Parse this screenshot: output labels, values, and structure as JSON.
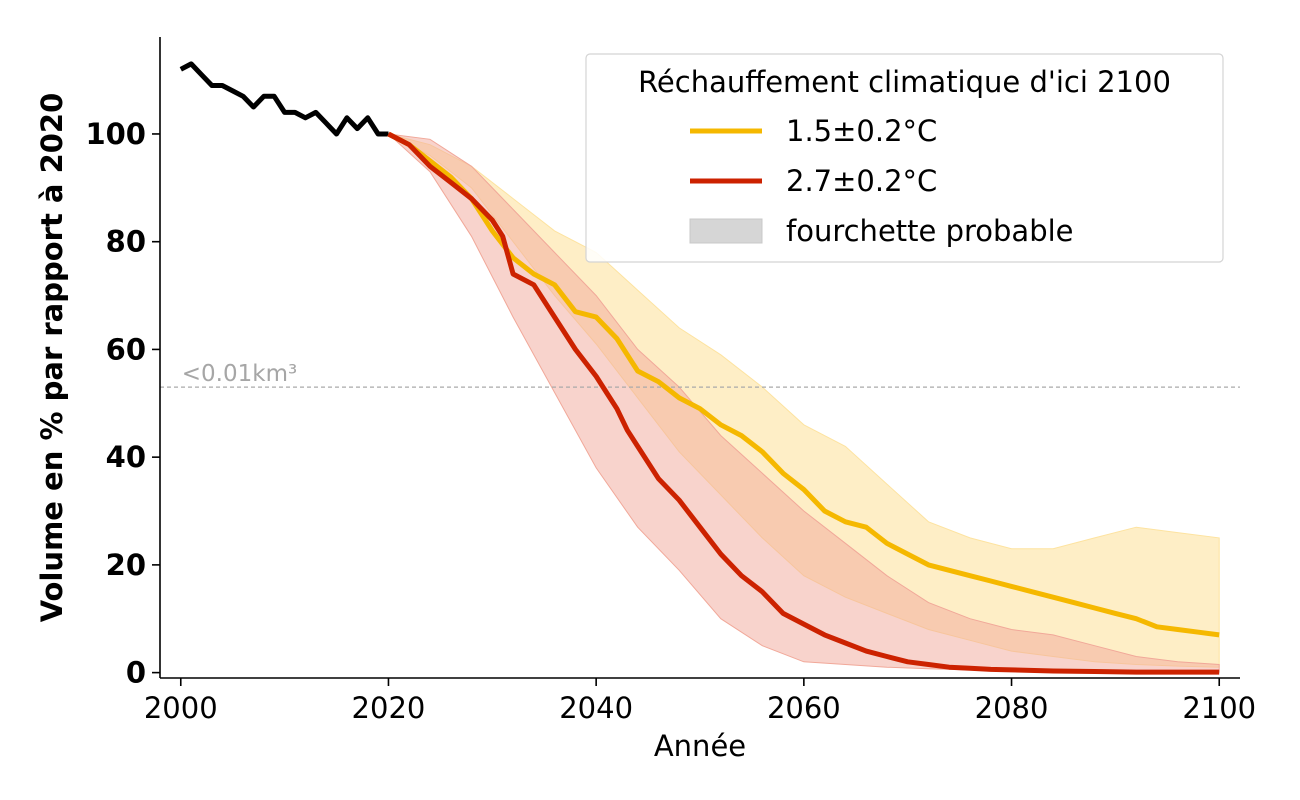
{
  "chart_data": {
    "type": "line",
    "title": "",
    "xlabel": "Année",
    "ylabel": "Volume en % par rapport à 2020",
    "xlim": [
      1998,
      2102
    ],
    "ylim": [
      -1,
      118
    ],
    "xticks": [
      2000,
      2020,
      2040,
      2060,
      2080,
      2100
    ],
    "yticks": [
      0,
      20,
      40,
      60,
      80,
      100
    ],
    "grid": false,
    "legend": {
      "title": "Réchauffement climatique d'ici 2100",
      "placement": "top-right",
      "entries": [
        {
          "label": "1.5±0.2°C",
          "kind": "line",
          "color": "#f5b800"
        },
        {
          "label": "2.7±0.2°C",
          "kind": "line",
          "color": "#cc2200"
        },
        {
          "label": "fourchette probable",
          "kind": "patch",
          "color": "#d6d6d6"
        }
      ]
    },
    "annotations": [
      {
        "text": "<0.01km³",
        "y": 53,
        "x": 2000,
        "style": "dashed-horizontal-line",
        "color": "#aaaaaa"
      }
    ],
    "series": [
      {
        "key": "historical",
        "color": "#000000",
        "x": [
          2000,
          2001,
          2002,
          2003,
          2004,
          2005,
          2006,
          2007,
          2008,
          2009,
          2010,
          2011,
          2012,
          2013,
          2014,
          2015,
          2016,
          2017,
          2018,
          2019,
          2020
        ],
        "values": [
          112,
          113,
          111,
          109,
          109,
          108,
          107,
          105,
          107,
          107,
          104,
          104,
          103,
          104,
          102,
          100,
          103,
          101,
          103,
          100,
          100
        ]
      },
      {
        "key": "ssp-1.5",
        "color": "#f5b800",
        "x": [
          2020,
          2022,
          2024,
          2026,
          2028,
          2030,
          2032,
          2034,
          2036,
          2038,
          2040,
          2042,
          2044,
          2046,
          2048,
          2050,
          2052,
          2054,
          2056,
          2058,
          2060,
          2062,
          2064,
          2066,
          2068,
          2070,
          2072,
          2074,
          2076,
          2078,
          2080,
          2082,
          2084,
          2086,
          2088,
          2090,
          2092,
          2094,
          2096,
          2098,
          2100
        ],
        "values": [
          100,
          98,
          95,
          92,
          88,
          82,
          77,
          74,
          72,
          67,
          66,
          62,
          56,
          54,
          51,
          49,
          46,
          44,
          41,
          37,
          34,
          30,
          28,
          27,
          24,
          22,
          20,
          19,
          18,
          17,
          16,
          15,
          14,
          13,
          12,
          11,
          10,
          8.5,
          8,
          7.5,
          7
        ]
      },
      {
        "key": "ssp-2.7",
        "color": "#cc2200",
        "x": [
          2020,
          2022,
          2024,
          2026,
          2028,
          2030,
          2031,
          2032,
          2034,
          2036,
          2038,
          2040,
          2041,
          2042,
          2043,
          2044,
          2046,
          2048,
          2050,
          2052,
          2054,
          2056,
          2058,
          2060,
          2062,
          2064,
          2066,
          2068,
          2070,
          2072,
          2074,
          2076,
          2078,
          2080,
          2084,
          2088,
          2092,
          2096,
          2100
        ],
        "values": [
          100,
          98,
          94,
          91,
          88,
          84,
          81,
          74,
          72,
          66,
          60,
          55,
          52,
          49,
          45,
          42,
          36,
          32,
          27,
          22,
          18,
          15,
          11,
          9,
          7,
          5.5,
          4,
          3,
          2,
          1.5,
          1,
          0.8,
          0.6,
          0.5,
          0.3,
          0.2,
          0.1,
          0.1,
          0.1
        ]
      }
    ],
    "bands": [
      {
        "key": "range-1.5",
        "color": "#fde3a0",
        "x": [
          2020,
          2024,
          2028,
          2032,
          2036,
          2040,
          2044,
          2048,
          2052,
          2056,
          2060,
          2064,
          2068,
          2072,
          2076,
          2080,
          2084,
          2088,
          2092,
          2096,
          2100
        ],
        "upper": [
          100,
          98,
          94,
          88,
          82,
          78,
          71,
          64,
          59,
          53,
          46,
          42,
          35,
          28,
          25,
          23,
          23,
          25,
          27,
          26,
          25
        ],
        "lower": [
          100,
          96,
          90,
          80,
          70,
          61,
          51,
          41,
          33,
          25,
          18,
          14,
          11,
          8,
          6,
          4,
          3,
          2,
          1.5,
          1.2,
          1
        ]
      },
      {
        "key": "range-2.7",
        "color": "#f1a899",
        "x": [
          2020,
          2024,
          2028,
          2032,
          2036,
          2040,
          2044,
          2048,
          2052,
          2056,
          2060,
          2064,
          2068,
          2072,
          2076,
          2080,
          2084,
          2088,
          2092,
          2096,
          2100
        ],
        "upper": [
          100,
          99,
          94,
          86,
          78,
          70,
          60,
          53,
          44,
          37,
          30,
          24,
          18,
          13,
          10,
          8,
          7,
          5,
          3,
          2,
          1.5
        ],
        "lower": [
          100,
          93,
          81,
          66,
          52,
          38,
          27,
          19,
          10,
          5,
          2,
          1.5,
          1,
          0.7,
          0.5,
          0.4,
          0.3,
          0.2,
          0.1,
          0.1,
          0.1
        ]
      }
    ]
  }
}
